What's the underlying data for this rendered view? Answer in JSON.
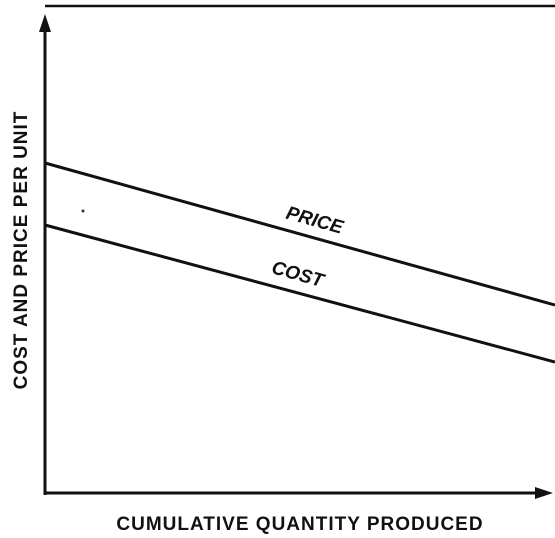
{
  "diagram": {
    "y_axis_label": "COST AND PRICE PER UNIT",
    "x_axis_label": "CUMULATIVE QUANTITY PRODUCED",
    "lines": [
      {
        "label": "PRICE"
      },
      {
        "label": "COST"
      }
    ]
  }
}
